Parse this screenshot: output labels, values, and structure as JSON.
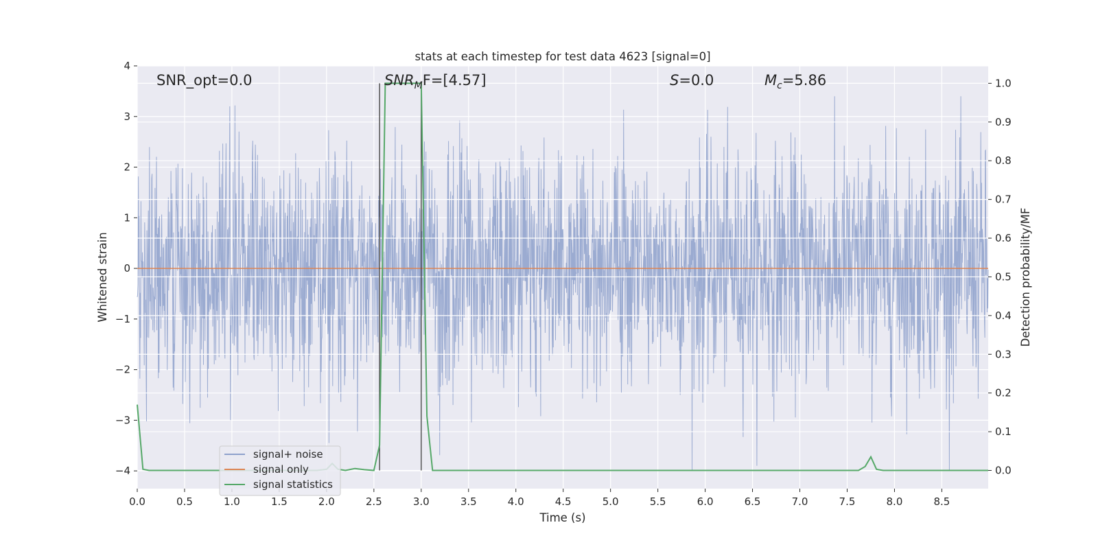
{
  "chart_data": {
    "type": "line",
    "title": "stats at each timestep for test data 4623 [signal=0]",
    "xlabel": "Time (s)",
    "ylabel": "Whitened strain",
    "ylabel_right": "Detection probability/MF",
    "xlim": [
      0.0,
      8.99
    ],
    "ylim": [
      -4.35,
      4.0
    ],
    "ylim_right": [
      -0.047,
      1.045
    ],
    "x_ticks": [
      "0.0",
      "0.5",
      "1.0",
      "1.5",
      "2.0",
      "2.5",
      "3.0",
      "3.5",
      "4.0",
      "4.5",
      "5.0",
      "5.5",
      "6.0",
      "6.5",
      "7.0",
      "7.5",
      "8.0",
      "8.5"
    ],
    "y_ticks": [
      "4",
      "3",
      "2",
      "1",
      "0",
      "−1",
      "−2",
      "−3",
      "−4"
    ],
    "y_right_ticks": [
      "1.0",
      "0.9",
      "0.8",
      "0.7",
      "0.6",
      "0.5",
      "0.4",
      "0.3",
      "0.2",
      "0.1",
      "0.0"
    ],
    "grid": true,
    "legend_position": "lower-left",
    "annotations": {
      "snr_opt": "SNR_opt=0.0",
      "snr_mf_sym": "SNR",
      "snr_mf_sub": "M",
      "snr_mf_rest": "F=[4.57]",
      "s_sym": "S",
      "s_rest": "=0.0",
      "mc_sym": "M",
      "mc_sub": "c",
      "mc_rest": "=5.86"
    },
    "vertical_markers": [
      2.56,
      3.0
    ],
    "series": [
      {
        "name": "signal+ noise",
        "color": "#8da0cb",
        "kind": "noise",
        "y_range": [
          -4.0,
          3.4
        ],
        "typical_band": [
          -1.7,
          1.6
        ]
      },
      {
        "name": "signal only",
        "color": "#dd8452",
        "y": 0.0
      },
      {
        "name": "signal statistics",
        "color": "#55a868",
        "axis": "right",
        "x": [
          0.0,
          0.06,
          0.125,
          0.25,
          0.5,
          1.0,
          1.5,
          1.9,
          2.0,
          2.06,
          2.12,
          2.2,
          2.3,
          2.4,
          2.5,
          2.56,
          2.62,
          2.75,
          2.9,
          3.0,
          3.06,
          3.12,
          3.25,
          4.0,
          5.0,
          6.0,
          7.0,
          7.5,
          7.62,
          7.69,
          7.75,
          7.81,
          7.88,
          8.0,
          8.5,
          8.99
        ],
        "y": [
          0.17,
          0.003,
          0.0,
          0.0,
          0.0,
          0.0,
          0.0,
          0.0,
          0.003,
          0.018,
          0.003,
          0.0,
          0.005,
          0.002,
          0.0,
          0.065,
          1.0,
          1.0,
          1.0,
          1.0,
          0.14,
          0.0,
          0.0,
          0.0,
          0.0,
          0.0,
          0.0,
          0.0,
          0.0,
          0.01,
          0.035,
          0.003,
          0.0,
          0.0,
          0.0,
          0.0
        ]
      }
    ]
  }
}
